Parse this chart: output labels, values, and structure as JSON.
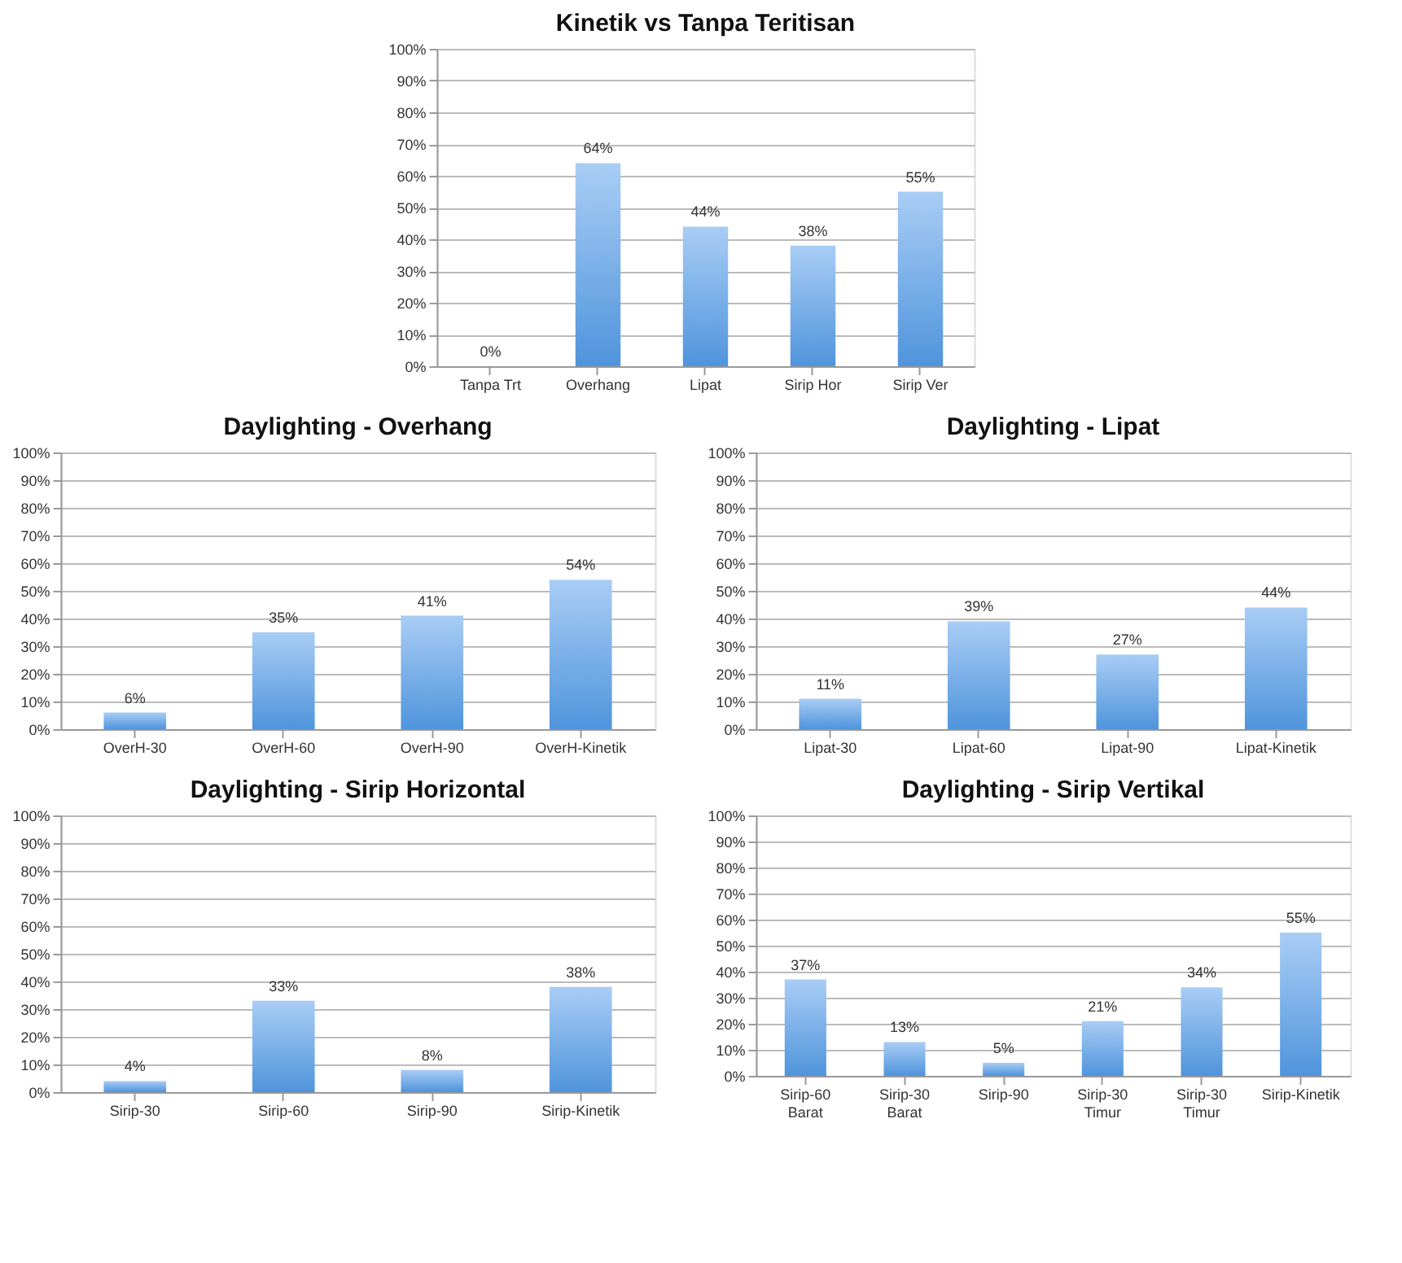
{
  "chart_data": [
    {
      "type": "bar",
      "title": "Kinetik vs Tanpa Teritisan",
      "categories": [
        "Tanpa Trt",
        "Overhang",
        "Lipat",
        "Sirip Hor",
        "Sirip Ver"
      ],
      "values": [
        0,
        64,
        44,
        38,
        55
      ],
      "value_labels": [
        "0%",
        "64%",
        "44%",
        "38%",
        "55%"
      ],
      "color": "#4f94dc",
      "ylim": [
        0,
        100
      ],
      "yticks": [
        {
          "value": 0,
          "label": "0%"
        },
        {
          "value": 10,
          "label": "10%"
        },
        {
          "value": 20,
          "label": "20%"
        },
        {
          "value": 30,
          "label": "30%"
        },
        {
          "value": 40,
          "label": "40%"
        },
        {
          "value": 50,
          "label": "50%"
        },
        {
          "value": 60,
          "label": "60%"
        },
        {
          "value": 70,
          "label": "70%"
        },
        {
          "value": 80,
          "label": "80%"
        },
        {
          "value": 90,
          "label": "90%"
        },
        {
          "value": 100,
          "label": "100%"
        }
      ],
      "grid": "y"
    },
    {
      "type": "bar",
      "title": "Daylighting - Overhang",
      "categories": [
        "OverH-30",
        "OverH-60",
        "OverH-90",
        "OverH-Kinetik"
      ],
      "values": [
        6,
        35,
        41,
        54
      ],
      "value_labels": [
        "6%",
        "35%",
        "41%",
        "54%"
      ],
      "color": "#4f94dc",
      "ylim": [
        0,
        100
      ],
      "yticks": [
        {
          "value": 0,
          "label": "0%"
        },
        {
          "value": 10,
          "label": "10%"
        },
        {
          "value": 20,
          "label": "20%"
        },
        {
          "value": 30,
          "label": "30%"
        },
        {
          "value": 40,
          "label": "40%"
        },
        {
          "value": 50,
          "label": "50%"
        },
        {
          "value": 60,
          "label": "60%"
        },
        {
          "value": 70,
          "label": "70%"
        },
        {
          "value": 80,
          "label": "80%"
        },
        {
          "value": 90,
          "label": "90%"
        },
        {
          "value": 100,
          "label": "100%"
        }
      ],
      "grid": "y"
    },
    {
      "type": "bar",
      "title": "Daylighting - Lipat",
      "categories": [
        "Lipat-30",
        "Lipat-60",
        "Lipat-90",
        "Lipat-Kinetik"
      ],
      "values": [
        11,
        39,
        27,
        44
      ],
      "value_labels": [
        "11%",
        "39%",
        "27%",
        "44%"
      ],
      "color": "#4f94dc",
      "ylim": [
        0,
        100
      ],
      "yticks": [
        {
          "value": 0,
          "label": "0%"
        },
        {
          "value": 10,
          "label": "10%"
        },
        {
          "value": 20,
          "label": "20%"
        },
        {
          "value": 30,
          "label": "30%"
        },
        {
          "value": 40,
          "label": "40%"
        },
        {
          "value": 50,
          "label": "50%"
        },
        {
          "value": 60,
          "label": "60%"
        },
        {
          "value": 70,
          "label": "70%"
        },
        {
          "value": 80,
          "label": "80%"
        },
        {
          "value": 90,
          "label": "90%"
        },
        {
          "value": 100,
          "label": "100%"
        }
      ],
      "grid": "y"
    },
    {
      "type": "bar",
      "title": "Daylighting - Sirip Horizontal",
      "categories": [
        "Sirip-30",
        "Sirip-60",
        "Sirip-90",
        "Sirip-Kinetik"
      ],
      "values": [
        4,
        33,
        8,
        38
      ],
      "value_labels": [
        "4%",
        "33%",
        "8%",
        "38%"
      ],
      "color": "#4f94dc",
      "ylim": [
        0,
        100
      ],
      "yticks": [
        {
          "value": 0,
          "label": "0%"
        },
        {
          "value": 10,
          "label": "10%"
        },
        {
          "value": 20,
          "label": "20%"
        },
        {
          "value": 30,
          "label": "30%"
        },
        {
          "value": 40,
          "label": "40%"
        },
        {
          "value": 50,
          "label": "50%"
        },
        {
          "value": 60,
          "label": "60%"
        },
        {
          "value": 70,
          "label": "70%"
        },
        {
          "value": 80,
          "label": "80%"
        },
        {
          "value": 90,
          "label": "90%"
        },
        {
          "value": 100,
          "label": "100%"
        }
      ],
      "grid": "y"
    },
    {
      "type": "bar",
      "title": "Daylighting - Sirip Vertikal",
      "categories": [
        "Sirip-60\nBarat",
        "Sirip-30\nBarat",
        "Sirip-90",
        "Sirip-30\nTimur",
        "Sirip-30\nTimur",
        "Sirip-Kinetik"
      ],
      "values": [
        37,
        13,
        5,
        21,
        34,
        55
      ],
      "value_labels": [
        "37%",
        "13%",
        "5%",
        "21%",
        "34%",
        "55%"
      ],
      "color": "#4f94dc",
      "ylim": [
        0,
        100
      ],
      "yticks": [
        {
          "value": 0,
          "label": "0%"
        },
        {
          "value": 10,
          "label": "10%"
        },
        {
          "value": 20,
          "label": "20%"
        },
        {
          "value": 30,
          "label": "30%"
        },
        {
          "value": 40,
          "label": "40%"
        },
        {
          "value": 50,
          "label": "50%"
        },
        {
          "value": 60,
          "label": "60%"
        },
        {
          "value": 70,
          "label": "70%"
        },
        {
          "value": 80,
          "label": "80%"
        },
        {
          "value": 90,
          "label": "90%"
        },
        {
          "value": 100,
          "label": "100%"
        }
      ],
      "grid": "y"
    }
  ]
}
